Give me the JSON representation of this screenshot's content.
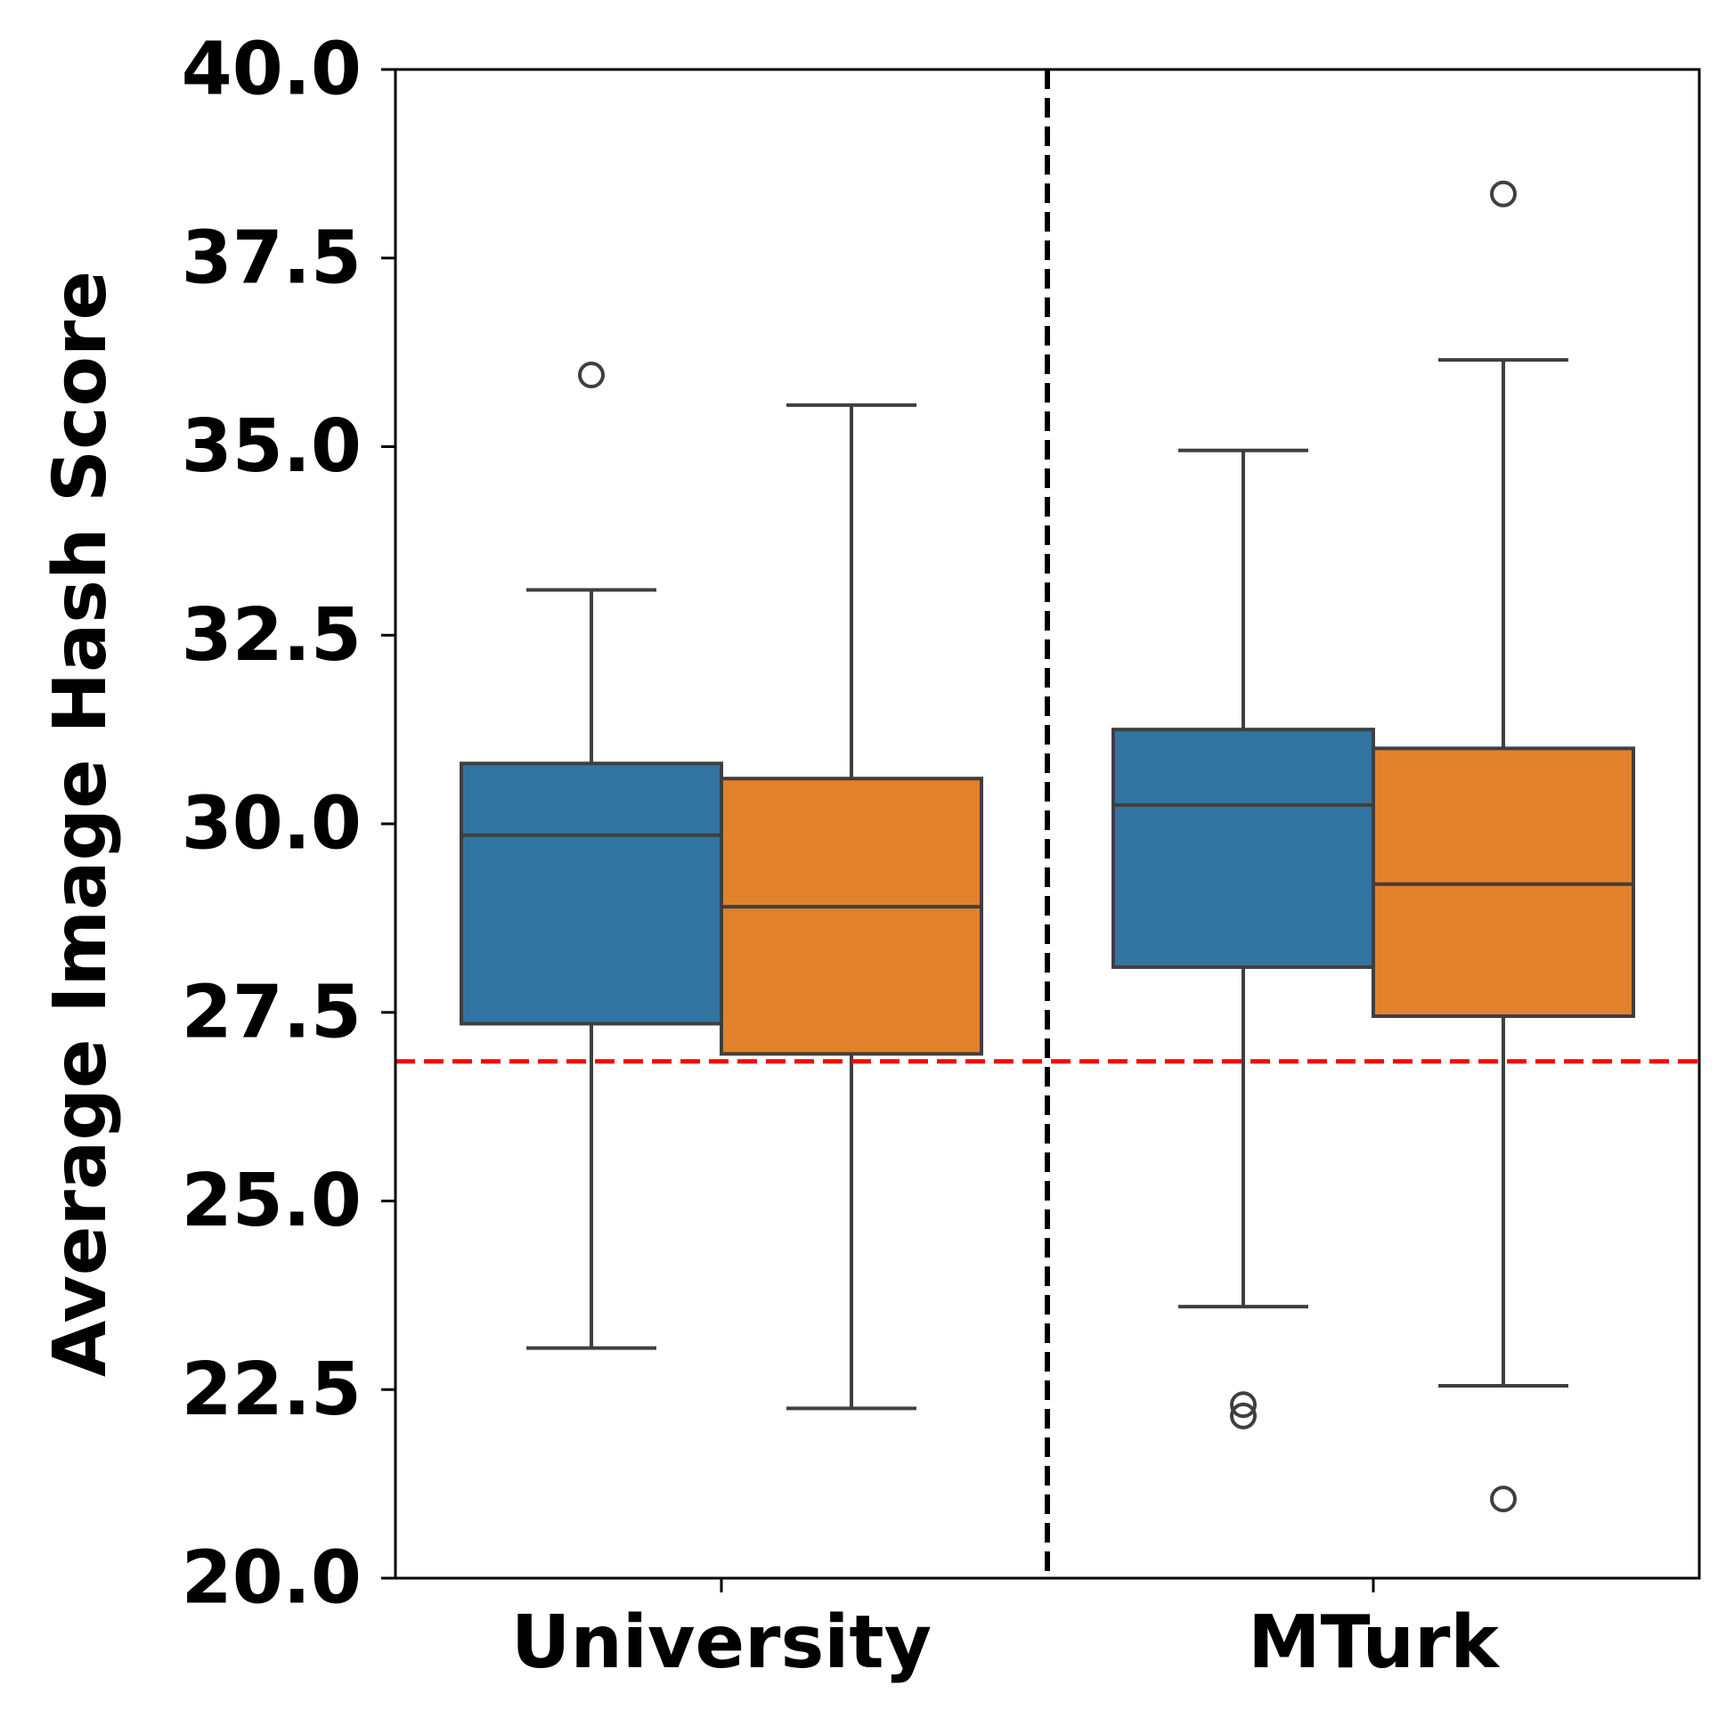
{
  "chart_data": {
    "type": "box",
    "ylabel": "Average Image Hash Score",
    "xlabel": "",
    "categories": [
      "University",
      "MTurk"
    ],
    "ylim": [
      20,
      40
    ],
    "yticks": [
      "20.0",
      "22.5",
      "25.0",
      "27.5",
      "30.0",
      "32.5",
      "35.0",
      "37.5",
      "40.0"
    ],
    "legend": "none",
    "grid": false,
    "reference_line": {
      "y": 26.85,
      "color": "#ff0000",
      "style": "dashed"
    },
    "category_separator": {
      "x": 0.5,
      "color": "#000000",
      "style": "dashed"
    },
    "series": [
      {
        "color": "#3274a1",
        "boxes": [
          {
            "category": "University",
            "whisker_low": 23.05,
            "q1": 27.35,
            "median": 29.85,
            "q3": 30.8,
            "whisker_high": 33.1,
            "outliers": [
              35.95
            ]
          },
          {
            "category": "MTurk",
            "whisker_low": 23.6,
            "q1": 28.1,
            "median": 30.25,
            "q3": 31.25,
            "whisker_high": 34.95,
            "outliers": [
              22.3,
              22.15
            ]
          }
        ]
      },
      {
        "color": "#e1812c",
        "boxes": [
          {
            "category": "University",
            "whisker_low": 22.25,
            "q1": 26.95,
            "median": 28.9,
            "q3": 30.6,
            "whisker_high": 35.55,
            "outliers": []
          },
          {
            "category": "MTurk",
            "whisker_low": 22.55,
            "q1": 27.45,
            "median": 29.2,
            "q3": 31.0,
            "whisker_high": 36.15,
            "outliers": [
              21.05,
              38.35
            ]
          }
        ]
      }
    ],
    "box_edge_color": "#3f3f3f"
  }
}
